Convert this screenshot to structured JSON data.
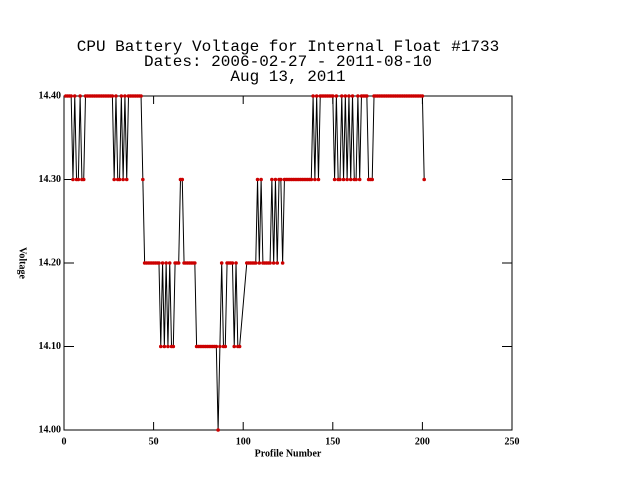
{
  "chart_data": {
    "type": "line",
    "title_lines": [
      "CPU Battery Voltage for Internal Float #1733",
      "Dates:  2006-02-27 -  2011-08-10",
      "Aug 13, 2011"
    ],
    "x_label": "Profile Number",
    "y_label": "Voltage",
    "xlim": [
      0,
      250
    ],
    "xticks": [
      0,
      50,
      100,
      150,
      200,
      250
    ],
    "ylim": [
      14.0,
      14.4
    ],
    "yticks": [
      {
        "value": 14.0,
        "label": "14.00"
      },
      {
        "value": 14.1,
        "label": "14.10"
      },
      {
        "value": 14.2,
        "label": "14.20"
      },
      {
        "value": 14.3,
        "label": "14.30"
      },
      {
        "value": 14.4,
        "label": "14.40"
      }
    ],
    "line_color": "#000000",
    "marker_color": "#cc0000",
    "x": [
      1,
      2,
      3,
      4,
      5,
      6,
      7,
      8,
      9,
      10,
      11,
      12,
      13,
      14,
      15,
      16,
      17,
      18,
      19,
      20,
      21,
      22,
      23,
      24,
      25,
      26,
      27,
      28,
      29,
      30,
      31,
      32,
      33,
      34,
      35,
      36,
      37,
      38,
      39,
      40,
      41,
      42,
      43,
      44,
      45,
      46,
      47,
      48,
      49,
      50,
      51,
      52,
      53,
      54,
      55,
      56,
      57,
      58,
      59,
      60,
      61,
      62,
      63,
      64,
      65,
      66,
      67,
      68,
      69,
      70,
      71,
      72,
      73,
      74,
      75,
      76,
      77,
      78,
      79,
      80,
      81,
      82,
      83,
      84,
      85,
      86,
      87,
      88,
      89,
      90,
      91,
      92,
      93,
      94,
      95,
      96,
      97,
      98,
      102,
      103,
      104,
      105,
      106,
      107,
      108,
      109,
      110,
      111,
      112,
      113,
      114,
      115,
      116,
      117,
      118,
      119,
      120,
      121,
      122,
      123,
      124,
      125,
      126,
      127,
      128,
      129,
      130,
      131,
      132,
      133,
      134,
      135,
      136,
      137,
      138,
      139,
      140,
      141,
      142,
      143,
      144,
      145,
      146,
      147,
      148,
      149,
      150,
      151,
      152,
      153,
      154,
      155,
      156,
      157,
      158,
      159,
      160,
      161,
      162,
      163,
      164,
      165,
      166,
      167,
      168,
      169,
      170,
      171,
      172,
      173,
      174,
      175,
      176,
      177,
      178,
      179,
      180,
      181,
      182,
      183,
      184,
      185,
      186,
      187,
      188,
      189,
      190,
      191,
      192,
      193,
      194,
      195,
      196,
      197,
      198,
      199,
      200,
      201
    ],
    "values": [
      14.4,
      14.4,
      14.4,
      14.4,
      14.3,
      14.4,
      14.3,
      14.3,
      14.4,
      14.3,
      14.3,
      14.4,
      14.4,
      14.4,
      14.4,
      14.4,
      14.4,
      14.4,
      14.4,
      14.4,
      14.4,
      14.4,
      14.4,
      14.4,
      14.4,
      14.4,
      14.4,
      14.3,
      14.4,
      14.3,
      14.3,
      14.4,
      14.3,
      14.4,
      14.3,
      14.4,
      14.4,
      14.4,
      14.4,
      14.4,
      14.4,
      14.4,
      14.4,
      14.3,
      14.2,
      14.2,
      14.2,
      14.2,
      14.2,
      14.2,
      14.2,
      14.2,
      14.2,
      14.1,
      14.2,
      14.1,
      14.2,
      14.1,
      14.2,
      14.1,
      14.1,
      14.2,
      14.2,
      14.2,
      14.3,
      14.3,
      14.2,
      14.2,
      14.2,
      14.2,
      14.2,
      14.2,
      14.2,
      14.1,
      14.1,
      14.1,
      14.1,
      14.1,
      14.1,
      14.1,
      14.1,
      14.1,
      14.1,
      14.1,
      14.1,
      14.0,
      14.1,
      14.2,
      14.1,
      14.1,
      14.2,
      14.2,
      14.2,
      14.2,
      14.1,
      14.2,
      14.1,
      14.1,
      14.2,
      14.2,
      14.2,
      14.2,
      14.2,
      14.2,
      14.3,
      14.2,
      14.3,
      14.2,
      14.2,
      14.2,
      14.2,
      14.2,
      14.3,
      14.2,
      14.3,
      14.2,
      14.3,
      14.3,
      14.2,
      14.3,
      14.3,
      14.3,
      14.3,
      14.3,
      14.3,
      14.3,
      14.3,
      14.3,
      14.3,
      14.3,
      14.3,
      14.3,
      14.3,
      14.3,
      14.3,
      14.4,
      14.3,
      14.4,
      14.3,
      14.4,
      14.4,
      14.4,
      14.4,
      14.4,
      14.4,
      14.4,
      14.4,
      14.3,
      14.4,
      14.3,
      14.3,
      14.4,
      14.3,
      14.4,
      14.3,
      14.4,
      14.3,
      14.4,
      14.3,
      14.3,
      14.4,
      14.3,
      14.4,
      14.4,
      14.4,
      14.4,
      14.3,
      14.3,
      14.3,
      14.4,
      14.4,
      14.4,
      14.4,
      14.4,
      14.4,
      14.4,
      14.4,
      14.4,
      14.4,
      14.4,
      14.4,
      14.4,
      14.4,
      14.4,
      14.4,
      14.4,
      14.4,
      14.4,
      14.4,
      14.4,
      14.4,
      14.4,
      14.4,
      14.4,
      14.4,
      14.4,
      14.4,
      14.3
    ]
  }
}
